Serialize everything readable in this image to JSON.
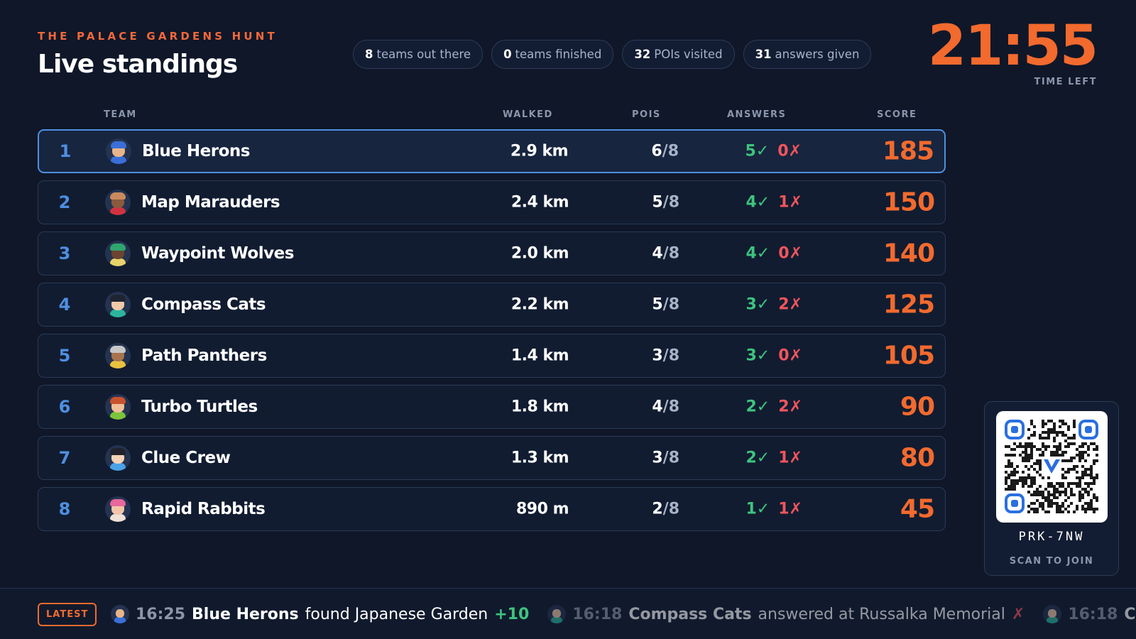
{
  "header": {
    "subtitle": "THE PALACE GARDENS HUNT",
    "title": "Live standings"
  },
  "stats": [
    {
      "value": "8",
      "label": "teams out there"
    },
    {
      "value": "0",
      "label": "teams finished"
    },
    {
      "value": "32",
      "label": "POIs visited"
    },
    {
      "value": "31",
      "label": "answers given"
    }
  ],
  "timer": {
    "value": "21:55",
    "label": "TIME LEFT"
  },
  "table": {
    "columns": {
      "team": "TEAM",
      "walked": "WALKED",
      "pois": "POIS",
      "answers": "ANSWERS",
      "score": "SCORE"
    },
    "rows": [
      {
        "rank": "1",
        "team": "Blue Herons",
        "walked": "2.9 km",
        "pois": "6",
        "pois_total": "/8",
        "correct": "5✓",
        "wrong": "0✗",
        "score": "185",
        "avatar_skin": "#e9b48a",
        "avatar_hair": "#3a6fd8",
        "avatar_shirt": "#3a6fd8"
      },
      {
        "rank": "2",
        "team": "Map Marauders",
        "walked": "2.4 km",
        "pois": "5",
        "pois_total": "/8",
        "correct": "4✓",
        "wrong": "1✗",
        "score": "150",
        "avatar_skin": "#8a5a3c",
        "avatar_hair": "#c98a5e",
        "avatar_shirt": "#d0333f"
      },
      {
        "rank": "3",
        "team": "Waypoint Wolves",
        "walked": "2.0 km",
        "pois": "4",
        "pois_total": "/8",
        "correct": "4✓",
        "wrong": "0✗",
        "score": "140",
        "avatar_skin": "#6b4430",
        "avatar_hair": "#2fa66d",
        "avatar_shirt": "#e8d26a"
      },
      {
        "rank": "4",
        "team": "Compass Cats",
        "walked": "2.2 km",
        "pois": "5",
        "pois_total": "/8",
        "correct": "3✓",
        "wrong": "2✗",
        "score": "125",
        "avatar_skin": "#f1c9a8",
        "avatar_hair": "#1f2430",
        "avatar_shirt": "#2bb59e"
      },
      {
        "rank": "5",
        "team": "Path Panthers",
        "walked": "1.4 km",
        "pois": "3",
        "pois_total": "/8",
        "correct": "3✓",
        "wrong": "0✗",
        "score": "105",
        "avatar_skin": "#a7744e",
        "avatar_hair": "#c7c7c7",
        "avatar_shirt": "#e9c23e"
      },
      {
        "rank": "6",
        "team": "Turbo Turtles",
        "walked": "1.8 km",
        "pois": "4",
        "pois_total": "/8",
        "correct": "2✓",
        "wrong": "2✗",
        "score": "90",
        "avatar_skin": "#f0bf97",
        "avatar_hair": "#c8522e",
        "avatar_shirt": "#7cc43a"
      },
      {
        "rank": "7",
        "team": "Clue Crew",
        "walked": "1.3 km",
        "pois": "3",
        "pois_total": "/8",
        "correct": "2✓",
        "wrong": "1✗",
        "score": "80",
        "avatar_skin": "#f4d2b5",
        "avatar_hair": "#20232c",
        "avatar_shirt": "#4aa3e8"
      },
      {
        "rank": "8",
        "team": "Rapid Rabbits",
        "walked": "890 m",
        "pois": "2",
        "pois_total": "/8",
        "correct": "1✓",
        "wrong": "1✗",
        "score": "45",
        "avatar_skin": "#f3c4a8",
        "avatar_hair": "#e8679c",
        "avatar_shirt": "#f0e0d6"
      }
    ]
  },
  "qr": {
    "code": "PRK-7NW",
    "label": "SCAN TO JOIN",
    "icon": "qr-code-icon"
  },
  "ticker": {
    "badge": "LATEST",
    "events": [
      {
        "time": "16:25",
        "team": "Blue Herons",
        "text": "found Japanese Garden",
        "result": "+10",
        "result_type": "points",
        "skin": "#e9b48a",
        "shirt": "#3a6fd8"
      },
      {
        "time": "16:18",
        "team": "Compass Cats",
        "text": "answered at Russalka Memorial",
        "result": "✗",
        "result_type": "wrong",
        "skin": "#f1c9a8",
        "shirt": "#2bb59e"
      },
      {
        "time": "16:18",
        "team": "Compass Cats",
        "text": "",
        "result": "",
        "result_type": "",
        "skin": "#f1c9a8",
        "shirt": "#2bb59e"
      }
    ]
  },
  "colors": {
    "accent": "#f26a2e",
    "rank": "#4e8fe0",
    "correct": "#3ec47e",
    "wrong": "#f2555c",
    "background": "#0f1729"
  }
}
